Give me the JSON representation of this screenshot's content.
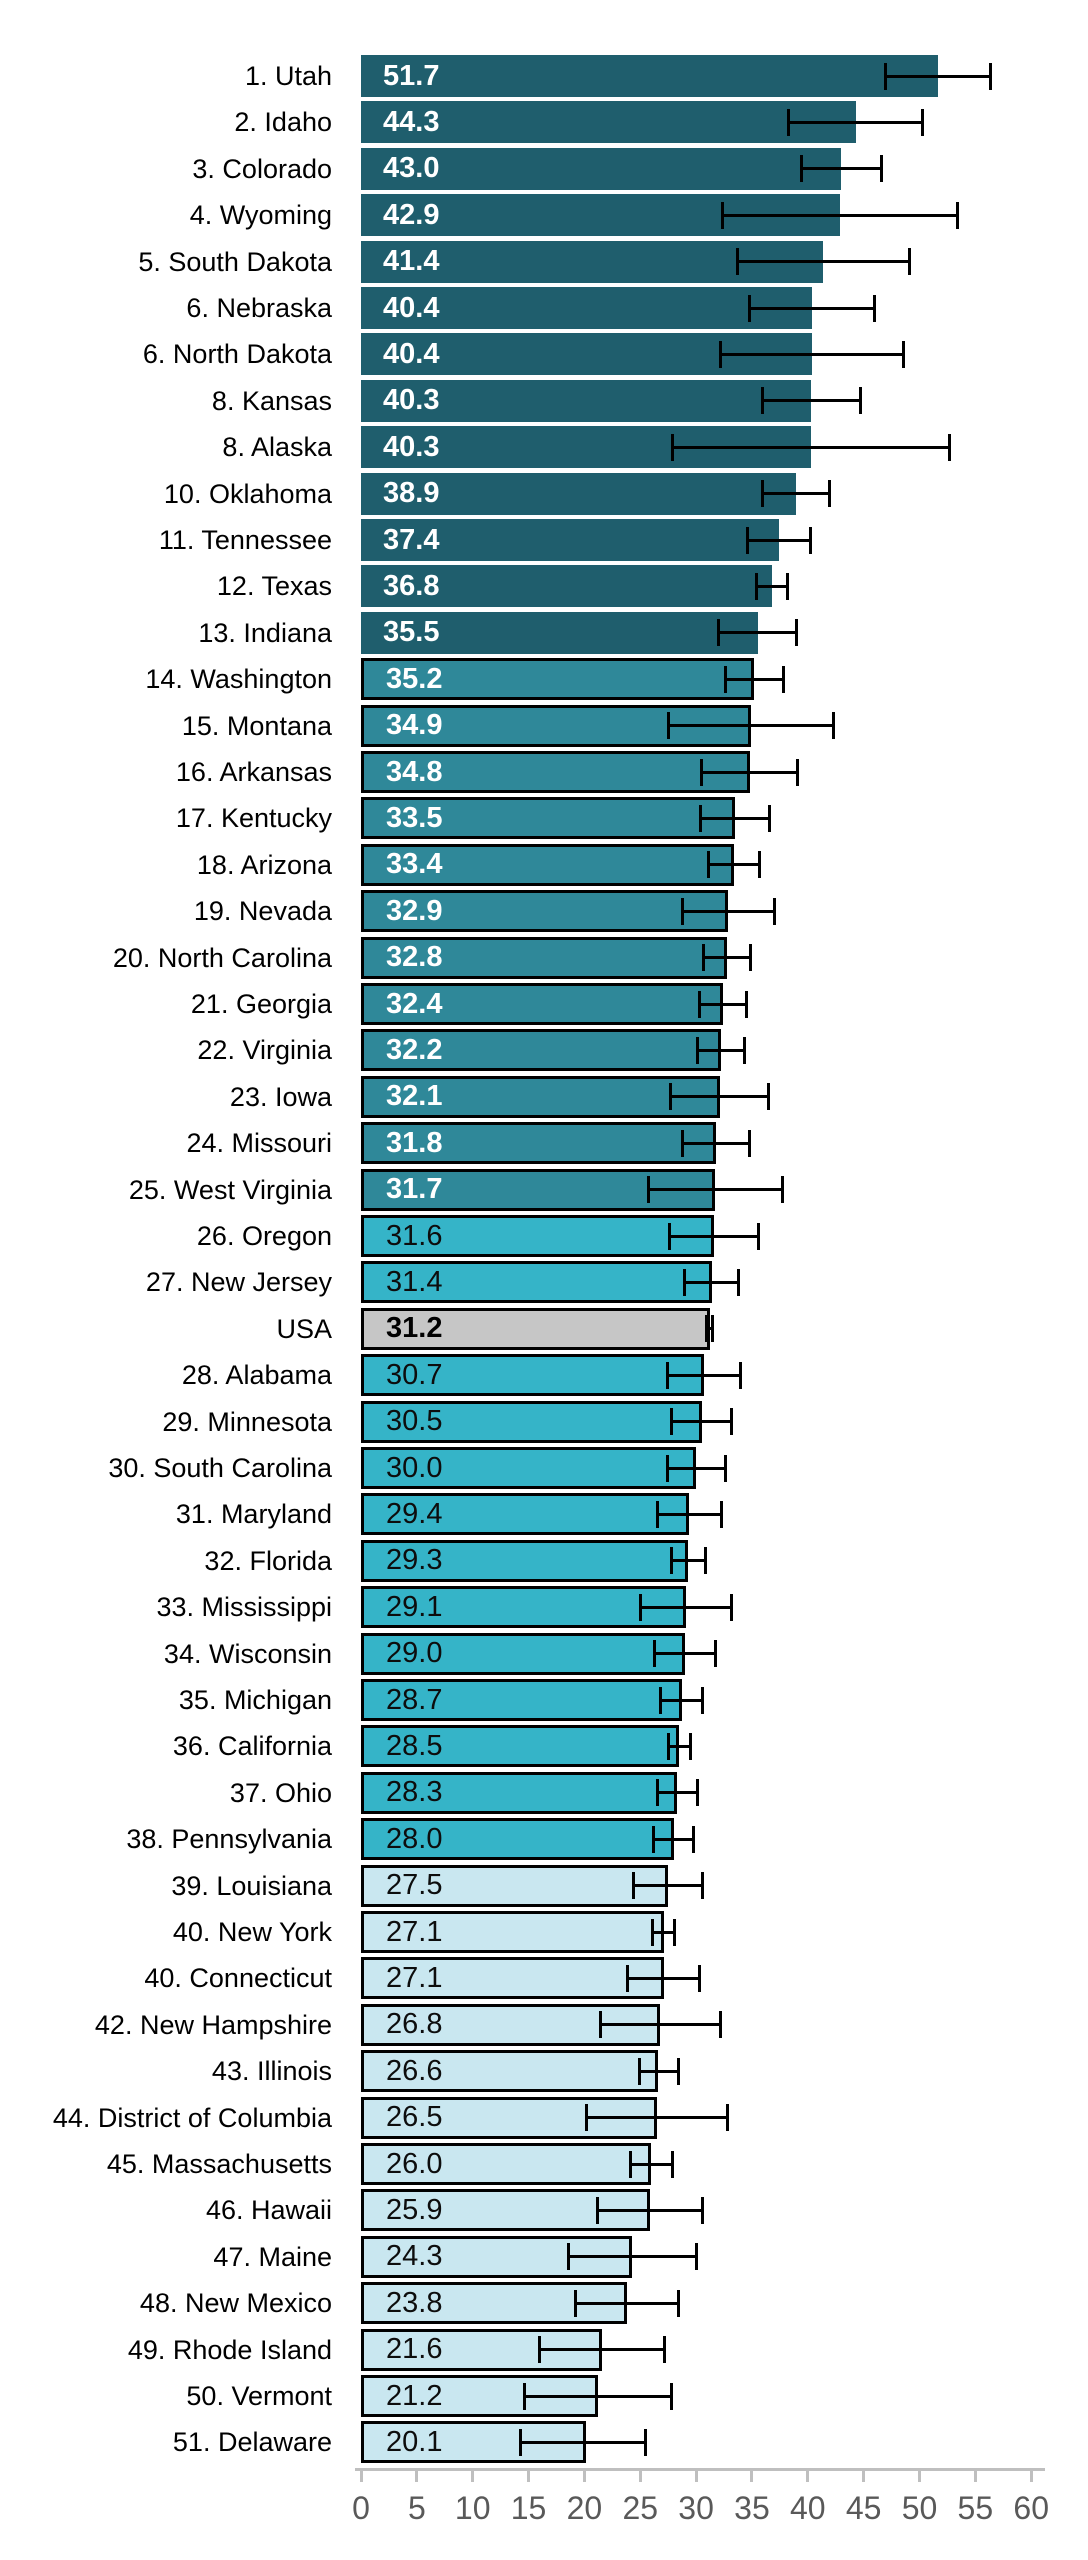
{
  "chart_data": {
    "type": "bar",
    "orientation": "horizontal",
    "title": "",
    "xlabel": "",
    "ylabel": "",
    "grid": false,
    "legend": false,
    "axis": {
      "min": 0,
      "max": 60,
      "tick_step": 5,
      "ticks": [
        0,
        5,
        10,
        15,
        20,
        25,
        30,
        35,
        40,
        45,
        50,
        55,
        60
      ]
    },
    "error_bars": "95% CI (read from black whiskers)",
    "series": [
      {
        "label": "1. Utah",
        "state": "Utah",
        "rank": 1,
        "value": 51.7,
        "value_label": "51.7",
        "ci_low": 47.0,
        "ci_high": 56.4,
        "group": "q1"
      },
      {
        "label": "2. Idaho",
        "state": "Idaho",
        "rank": 2,
        "value": 44.3,
        "value_label": "44.3",
        "ci_low": 38.3,
        "ci_high": 50.3,
        "group": "q1"
      },
      {
        "label": "3. Colorado",
        "state": "Colorado",
        "rank": 3,
        "value": 43.0,
        "value_label": "43.0",
        "ci_low": 39.4,
        "ci_high": 46.6,
        "group": "q1"
      },
      {
        "label": "4. Wyoming",
        "state": "Wyoming",
        "rank": 4,
        "value": 42.9,
        "value_label": "42.9",
        "ci_low": 32.4,
        "ci_high": 53.4,
        "group": "q1"
      },
      {
        "label": "5. South Dakota",
        "state": "South Dakota",
        "rank": 5,
        "value": 41.4,
        "value_label": "41.4",
        "ci_low": 33.7,
        "ci_high": 49.1,
        "group": "q1"
      },
      {
        "label": "6. Nebraska",
        "state": "Nebraska",
        "rank": 6,
        "value": 40.4,
        "value_label": "40.4",
        "ci_low": 34.8,
        "ci_high": 46.0,
        "group": "q1"
      },
      {
        "label": "6. North Dakota",
        "state": "North Dakota",
        "rank": 6,
        "value": 40.4,
        "value_label": "40.4",
        "ci_low": 32.2,
        "ci_high": 48.6,
        "group": "q1"
      },
      {
        "label": "8. Kansas",
        "state": "Kansas",
        "rank": 8,
        "value": 40.3,
        "value_label": "40.3",
        "ci_low": 35.9,
        "ci_high": 44.7,
        "group": "q1"
      },
      {
        "label": "8. Alaska",
        "state": "Alaska",
        "rank": 8,
        "value": 40.3,
        "value_label": "40.3",
        "ci_low": 27.9,
        "ci_high": 52.7,
        "group": "q1"
      },
      {
        "label": "10. Oklahoma",
        "state": "Oklahoma",
        "rank": 10,
        "value": 38.9,
        "value_label": "38.9",
        "ci_low": 35.9,
        "ci_high": 41.9,
        "group": "q1"
      },
      {
        "label": "11. Tennessee",
        "state": "Tennessee",
        "rank": 11,
        "value": 37.4,
        "value_label": "37.4",
        "ci_low": 34.6,
        "ci_high": 40.2,
        "group": "q1"
      },
      {
        "label": "12. Texas",
        "state": "Texas",
        "rank": 12,
        "value": 36.8,
        "value_label": "36.8",
        "ci_low": 35.4,
        "ci_high": 38.2,
        "group": "q1"
      },
      {
        "label": "13. Indiana",
        "state": "Indiana",
        "rank": 13,
        "value": 35.5,
        "value_label": "35.5",
        "ci_low": 32.0,
        "ci_high": 39.0,
        "group": "q1"
      },
      {
        "label": "14. Washington",
        "state": "Washington",
        "rank": 14,
        "value": 35.2,
        "value_label": "35.2",
        "ci_low": 32.6,
        "ci_high": 37.8,
        "group": "q2"
      },
      {
        "label": "15. Montana",
        "state": "Montana",
        "rank": 15,
        "value": 34.9,
        "value_label": "34.9",
        "ci_low": 27.5,
        "ci_high": 42.3,
        "group": "q2"
      },
      {
        "label": "16. Arkansas",
        "state": "Arkansas",
        "rank": 16,
        "value": 34.8,
        "value_label": "34.8",
        "ci_low": 30.5,
        "ci_high": 39.1,
        "group": "q2"
      },
      {
        "label": "17. Kentucky",
        "state": "Kentucky",
        "rank": 17,
        "value": 33.5,
        "value_label": "33.5",
        "ci_low": 30.4,
        "ci_high": 36.6,
        "group": "q2"
      },
      {
        "label": "18. Arizona",
        "state": "Arizona",
        "rank": 18,
        "value": 33.4,
        "value_label": "33.4",
        "ci_low": 31.1,
        "ci_high": 35.7,
        "group": "q2"
      },
      {
        "label": "19. Nevada",
        "state": "Nevada",
        "rank": 19,
        "value": 32.9,
        "value_label": "32.9",
        "ci_low": 28.8,
        "ci_high": 37.0,
        "group": "q2"
      },
      {
        "label": "20. North Carolina",
        "state": "North Carolina",
        "rank": 20,
        "value": 32.8,
        "value_label": "32.8",
        "ci_low": 30.7,
        "ci_high": 34.9,
        "group": "q2"
      },
      {
        "label": "21. Georgia",
        "state": "Georgia",
        "rank": 21,
        "value": 32.4,
        "value_label": "32.4",
        "ci_low": 30.3,
        "ci_high": 34.5,
        "group": "q2"
      },
      {
        "label": "22. Virginia",
        "state": "Virginia",
        "rank": 22,
        "value": 32.2,
        "value_label": "32.2",
        "ci_low": 30.1,
        "ci_high": 34.3,
        "group": "q2"
      },
      {
        "label": "23. Iowa",
        "state": "Iowa",
        "rank": 23,
        "value": 32.1,
        "value_label": "32.1",
        "ci_low": 27.7,
        "ci_high": 36.5,
        "group": "q2"
      },
      {
        "label": "24. Missouri",
        "state": "Missouri",
        "rank": 24,
        "value": 31.8,
        "value_label": "31.8",
        "ci_low": 28.8,
        "ci_high": 34.8,
        "group": "q2"
      },
      {
        "label": "25. West Virginia",
        "state": "West Virginia",
        "rank": 25,
        "value": 31.7,
        "value_label": "31.7",
        "ci_low": 25.7,
        "ci_high": 37.7,
        "group": "q2"
      },
      {
        "label": "26. Oregon",
        "state": "Oregon",
        "rank": 26,
        "value": 31.6,
        "value_label": "31.6",
        "ci_low": 27.6,
        "ci_high": 35.6,
        "group": "q3"
      },
      {
        "label": "27. New Jersey",
        "state": "New Jersey",
        "rank": 27,
        "value": 31.4,
        "value_label": "31.4",
        "ci_low": 29.0,
        "ci_high": 33.8,
        "group": "q3"
      },
      {
        "label": "USA",
        "state": "USA",
        "rank": null,
        "value": 31.2,
        "value_label": "31.2",
        "ci_low": 30.9,
        "ci_high": 31.5,
        "group": "usa"
      },
      {
        "label": "28. Alabama",
        "state": "Alabama",
        "rank": 28,
        "value": 30.7,
        "value_label": "30.7",
        "ci_low": 27.4,
        "ci_high": 34.0,
        "group": "q3"
      },
      {
        "label": "29. Minnesota",
        "state": "Minnesota",
        "rank": 29,
        "value": 30.5,
        "value_label": "30.5",
        "ci_low": 27.8,
        "ci_high": 33.2,
        "group": "q3"
      },
      {
        "label": "30. South Carolina",
        "state": "South Carolina",
        "rank": 30,
        "value": 30.0,
        "value_label": "30.0",
        "ci_low": 27.4,
        "ci_high": 32.6,
        "group": "q3"
      },
      {
        "label": "31. Maryland",
        "state": "Maryland",
        "rank": 31,
        "value": 29.4,
        "value_label": "29.4",
        "ci_low": 26.5,
        "ci_high": 32.3,
        "group": "q3"
      },
      {
        "label": "32. Florida",
        "state": "Florida",
        "rank": 32,
        "value": 29.3,
        "value_label": "29.3",
        "ci_low": 27.8,
        "ci_high": 30.8,
        "group": "q3"
      },
      {
        "label": "33. Mississippi",
        "state": "Mississippi",
        "rank": 33,
        "value": 29.1,
        "value_label": "29.1",
        "ci_low": 25.0,
        "ci_high": 33.2,
        "group": "q3"
      },
      {
        "label": "34. Wisconsin",
        "state": "Wisconsin",
        "rank": 34,
        "value": 29.0,
        "value_label": "29.0",
        "ci_low": 26.3,
        "ci_high": 31.7,
        "group": "q3"
      },
      {
        "label": "35. Michigan",
        "state": "Michigan",
        "rank": 35,
        "value": 28.7,
        "value_label": "28.7",
        "ci_low": 26.8,
        "ci_high": 30.6,
        "group": "q3"
      },
      {
        "label": "36. California",
        "state": "California",
        "rank": 36,
        "value": 28.5,
        "value_label": "28.5",
        "ci_low": 27.5,
        "ci_high": 29.5,
        "group": "q3"
      },
      {
        "label": "37. Ohio",
        "state": "Ohio",
        "rank": 37,
        "value": 28.3,
        "value_label": "28.3",
        "ci_low": 26.5,
        "ci_high": 30.1,
        "group": "q3"
      },
      {
        "label": "38. Pennsylvania",
        "state": "Pennsylvania",
        "rank": 38,
        "value": 28.0,
        "value_label": "28.0",
        "ci_low": 26.2,
        "ci_high": 29.8,
        "group": "q3"
      },
      {
        "label": "39. Louisiana",
        "state": "Louisiana",
        "rank": 39,
        "value": 27.5,
        "value_label": "27.5",
        "ci_low": 24.4,
        "ci_high": 30.6,
        "group": "q4"
      },
      {
        "label": "40. New York",
        "state": "New York",
        "rank": 40,
        "value": 27.1,
        "value_label": "27.1",
        "ci_low": 26.1,
        "ci_high": 28.1,
        "group": "q4"
      },
      {
        "label": "40. Connecticut",
        "state": "Connecticut",
        "rank": 40,
        "value": 27.1,
        "value_label": "27.1",
        "ci_low": 23.9,
        "ci_high": 30.3,
        "group": "q4"
      },
      {
        "label": "42. New Hampshire",
        "state": "New Hampshire",
        "rank": 42,
        "value": 26.8,
        "value_label": "26.8",
        "ci_low": 21.4,
        "ci_high": 32.2,
        "group": "q4"
      },
      {
        "label": "43. Illinois",
        "state": "Illinois",
        "rank": 43,
        "value": 26.6,
        "value_label": "26.6",
        "ci_low": 24.9,
        "ci_high": 28.4,
        "group": "q4"
      },
      {
        "label": "44. District of Columbia",
        "state": "District of Columbia",
        "rank": 44,
        "value": 26.5,
        "value_label": "26.5",
        "ci_low": 20.2,
        "ci_high": 32.8,
        "group": "q4"
      },
      {
        "label": "45. Massachusetts",
        "state": "Massachusetts",
        "rank": 45,
        "value": 26.0,
        "value_label": "26.0",
        "ci_low": 24.1,
        "ci_high": 27.9,
        "group": "q4"
      },
      {
        "label": "46. Hawaii",
        "state": "Hawaii",
        "rank": 46,
        "value": 25.9,
        "value_label": "25.9",
        "ci_low": 21.2,
        "ci_high": 30.6,
        "group": "q4"
      },
      {
        "label": "47. Maine",
        "state": "Maine",
        "rank": 47,
        "value": 24.3,
        "value_label": "24.3",
        "ci_low": 18.6,
        "ci_high": 30.0,
        "group": "q4"
      },
      {
        "label": "48. New Mexico",
        "state": "New Mexico",
        "rank": 48,
        "value": 23.8,
        "value_label": "23.8",
        "ci_low": 19.2,
        "ci_high": 28.4,
        "group": "q4"
      },
      {
        "label": "49. Rhode Island",
        "state": "Rhode Island",
        "rank": 49,
        "value": 21.6,
        "value_label": "21.6",
        "ci_low": 16.0,
        "ci_high": 27.2,
        "group": "q4"
      },
      {
        "label": "50. Vermont",
        "state": "Vermont",
        "rank": 50,
        "value": 21.2,
        "value_label": "21.2",
        "ci_low": 14.6,
        "ci_high": 27.8,
        "group": "q4"
      },
      {
        "label": "51. Delaware",
        "state": "Delaware",
        "rank": 51,
        "value": 20.1,
        "value_label": "20.1",
        "ci_low": 14.3,
        "ci_high": 25.5,
        "group": "q4"
      }
    ],
    "palette": {
      "q1": {
        "fill": "#1f5e6d",
        "text": "#ffffff",
        "border": "none",
        "weight": "600"
      },
      "q2": {
        "fill": "#2f8899",
        "text": "#ffffff",
        "border": "#000000",
        "weight": "600"
      },
      "q3": {
        "fill": "#35b4c8",
        "text": "#0d0d0d",
        "border": "#000000",
        "weight": "400"
      },
      "q4": {
        "fill": "#c9e7f0",
        "text": "#0d0d0d",
        "border": "#000000",
        "weight": "400"
      },
      "usa": {
        "fill": "#c6c6c6",
        "text": "#000000",
        "border": "#000000",
        "weight": "700"
      }
    },
    "error_bar_color": "#000000",
    "axis_line_color": "#bfbfbf",
    "tick_label_color": "#595959"
  }
}
